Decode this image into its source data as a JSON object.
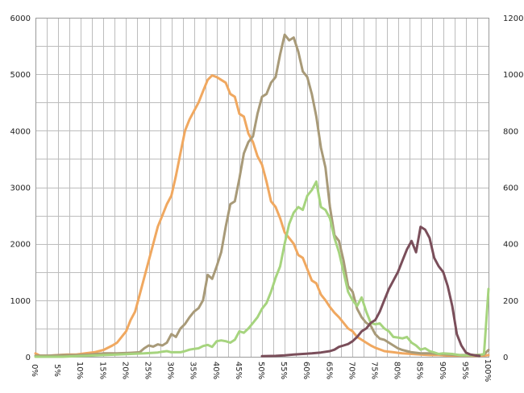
{
  "chart_data": {
    "type": "line",
    "title": "",
    "xlabel": "",
    "ylabel": "",
    "x_tick_labels": [
      "0%",
      "5%",
      "10%",
      "15%",
      "20%",
      "25%",
      "30%",
      "35%",
      "40%",
      "45%",
      "50%",
      "55%",
      "60%",
      "65%",
      "70%",
      "75%",
      "80%",
      "85%",
      "90%",
      "95%",
      "100%"
    ],
    "y_left_ticks": [
      "0",
      "1000",
      "2000",
      "3000",
      "4000",
      "5000",
      "6000"
    ],
    "y_right_ticks": [
      "0",
      "200",
      "400",
      "600",
      "800",
      "1000",
      "1200"
    ],
    "ylim_left": [
      0,
      6000
    ],
    "ylim_right": [
      0,
      1200
    ],
    "xlim": [
      0,
      100
    ],
    "grid": true,
    "legend": "none",
    "series": [
      {
        "color": "#f0a860",
        "axis": "left",
        "points": [
          [
            0,
            60
          ],
          [
            1,
            20
          ],
          [
            3,
            20
          ],
          [
            5,
            30
          ],
          [
            7,
            40
          ],
          [
            9,
            40
          ],
          [
            11,
            60
          ],
          [
            13,
            80
          ],
          [
            15,
            120
          ],
          [
            17,
            200
          ],
          [
            18,
            250
          ],
          [
            20,
            450
          ],
          [
            21,
            650
          ],
          [
            22,
            800
          ],
          [
            23,
            1100
          ],
          [
            24,
            1400
          ],
          [
            25,
            1700
          ],
          [
            26,
            2000
          ],
          [
            27,
            2300
          ],
          [
            28,
            2500
          ],
          [
            29,
            2700
          ],
          [
            30,
            2850
          ],
          [
            31,
            3200
          ],
          [
            32,
            3600
          ],
          [
            33,
            4000
          ],
          [
            34,
            4200
          ],
          [
            35,
            4350
          ],
          [
            36,
            4500
          ],
          [
            37,
            4700
          ],
          [
            38,
            4900
          ],
          [
            39,
            4980
          ],
          [
            40,
            4950
          ],
          [
            41,
            4900
          ],
          [
            42,
            4850
          ],
          [
            43,
            4650
          ],
          [
            44,
            4600
          ],
          [
            45,
            4300
          ],
          [
            46,
            4250
          ],
          [
            47,
            3950
          ],
          [
            48,
            3800
          ],
          [
            49,
            3550
          ],
          [
            50,
            3400
          ],
          [
            51,
            3100
          ],
          [
            52,
            2750
          ],
          [
            53,
            2650
          ],
          [
            54,
            2450
          ],
          [
            55,
            2200
          ],
          [
            56,
            2100
          ],
          [
            57,
            2000
          ],
          [
            58,
            1800
          ],
          [
            59,
            1750
          ],
          [
            60,
            1550
          ],
          [
            61,
            1350
          ],
          [
            62,
            1300
          ],
          [
            63,
            1100
          ],
          [
            64,
            1000
          ],
          [
            65,
            880
          ],
          [
            66,
            780
          ],
          [
            67,
            700
          ],
          [
            68,
            600
          ],
          [
            69,
            500
          ],
          [
            70,
            450
          ],
          [
            71,
            350
          ],
          [
            72,
            300
          ],
          [
            73,
            250
          ],
          [
            74,
            200
          ],
          [
            75,
            160
          ],
          [
            76,
            130
          ],
          [
            77,
            100
          ],
          [
            78,
            90
          ],
          [
            79,
            80
          ],
          [
            80,
            70
          ],
          [
            81,
            60
          ],
          [
            83,
            50
          ],
          [
            85,
            40
          ],
          [
            87,
            30
          ],
          [
            89,
            30
          ],
          [
            91,
            20
          ],
          [
            93,
            20
          ],
          [
            95,
            20
          ],
          [
            97,
            15
          ],
          [
            99,
            20
          ],
          [
            100,
            30
          ]
        ]
      },
      {
        "color": "#a89a78",
        "axis": "left",
        "points": [
          [
            0,
            20
          ],
          [
            3,
            20
          ],
          [
            6,
            30
          ],
          [
            9,
            30
          ],
          [
            12,
            40
          ],
          [
            15,
            60
          ],
          [
            18,
            60
          ],
          [
            21,
            70
          ],
          [
            23,
            80
          ],
          [
            24,
            150
          ],
          [
            25,
            200
          ],
          [
            26,
            180
          ],
          [
            27,
            220
          ],
          [
            28,
            200
          ],
          [
            29,
            250
          ],
          [
            30,
            400
          ],
          [
            31,
            350
          ],
          [
            32,
            500
          ],
          [
            33,
            580
          ],
          [
            34,
            700
          ],
          [
            35,
            800
          ],
          [
            36,
            860
          ],
          [
            37,
            1000
          ],
          [
            38,
            1450
          ],
          [
            39,
            1380
          ],
          [
            40,
            1600
          ],
          [
            41,
            1850
          ],
          [
            42,
            2300
          ],
          [
            43,
            2700
          ],
          [
            44,
            2750
          ],
          [
            45,
            3150
          ],
          [
            46,
            3600
          ],
          [
            47,
            3800
          ],
          [
            48,
            3900
          ],
          [
            49,
            4300
          ],
          [
            50,
            4600
          ],
          [
            51,
            4650
          ],
          [
            52,
            4850
          ],
          [
            53,
            4950
          ],
          [
            54,
            5350
          ],
          [
            55,
            5700
          ],
          [
            56,
            5600
          ],
          [
            57,
            5650
          ],
          [
            58,
            5400
          ],
          [
            59,
            5050
          ],
          [
            60,
            4950
          ],
          [
            61,
            4650
          ],
          [
            62,
            4250
          ],
          [
            63,
            3700
          ],
          [
            64,
            3350
          ],
          [
            65,
            2650
          ],
          [
            66,
            2150
          ],
          [
            67,
            2050
          ],
          [
            68,
            1700
          ],
          [
            69,
            1250
          ],
          [
            70,
            1150
          ],
          [
            71,
            850
          ],
          [
            72,
            700
          ],
          [
            73,
            600
          ],
          [
            74,
            550
          ],
          [
            75,
            400
          ],
          [
            76,
            320
          ],
          [
            77,
            300
          ],
          [
            78,
            250
          ],
          [
            79,
            200
          ],
          [
            80,
            150
          ],
          [
            81,
            120
          ],
          [
            82,
            100
          ],
          [
            83,
            80
          ],
          [
            85,
            60
          ],
          [
            87,
            60
          ],
          [
            89,
            50
          ],
          [
            91,
            40
          ],
          [
            93,
            30
          ],
          [
            95,
            30
          ],
          [
            97,
            30
          ],
          [
            99,
            40
          ],
          [
            100,
            120
          ]
        ]
      },
      {
        "color": "#a6d47e",
        "axis": "right",
        "points": [
          [
            0,
            0
          ],
          [
            3,
            0
          ],
          [
            6,
            0
          ],
          [
            9,
            2
          ],
          [
            12,
            4
          ],
          [
            15,
            6
          ],
          [
            18,
            8
          ],
          [
            21,
            10
          ],
          [
            24,
            12
          ],
          [
            27,
            15
          ],
          [
            28,
            18
          ],
          [
            29,
            20
          ],
          [
            30,
            16
          ],
          [
            32,
            16
          ],
          [
            33,
            20
          ],
          [
            34,
            25
          ],
          [
            35,
            28
          ],
          [
            36,
            30
          ],
          [
            37,
            38
          ],
          [
            38,
            42
          ],
          [
            39,
            35
          ],
          [
            40,
            55
          ],
          [
            41,
            58
          ],
          [
            42,
            55
          ],
          [
            43,
            50
          ],
          [
            44,
            60
          ],
          [
            45,
            90
          ],
          [
            46,
            85
          ],
          [
            47,
            100
          ],
          [
            48,
            120
          ],
          [
            49,
            140
          ],
          [
            50,
            170
          ],
          [
            51,
            190
          ],
          [
            52,
            230
          ],
          [
            53,
            280
          ],
          [
            54,
            320
          ],
          [
            55,
            400
          ],
          [
            56,
            470
          ],
          [
            57,
            510
          ],
          [
            58,
            530
          ],
          [
            59,
            520
          ],
          [
            60,
            570
          ],
          [
            61,
            590
          ],
          [
            62,
            620
          ],
          [
            63,
            530
          ],
          [
            64,
            520
          ],
          [
            65,
            490
          ],
          [
            66,
            420
          ],
          [
            67,
            370
          ],
          [
            68,
            300
          ],
          [
            69,
            230
          ],
          [
            70,
            200
          ],
          [
            71,
            180
          ],
          [
            72,
            210
          ],
          [
            73,
            160
          ],
          [
            74,
            120
          ],
          [
            75,
            115
          ],
          [
            76,
            118
          ],
          [
            77,
            100
          ],
          [
            78,
            90
          ],
          [
            79,
            70
          ],
          [
            80,
            68
          ],
          [
            81,
            65
          ],
          [
            82,
            70
          ],
          [
            83,
            50
          ],
          [
            84,
            40
          ],
          [
            85,
            25
          ],
          [
            86,
            30
          ],
          [
            87,
            20
          ],
          [
            88,
            15
          ],
          [
            89,
            10
          ],
          [
            90,
            12
          ],
          [
            92,
            10
          ],
          [
            94,
            5
          ],
          [
            96,
            5
          ],
          [
            98,
            6
          ],
          [
            99,
            10
          ],
          [
            100,
            240
          ]
        ]
      },
      {
        "color": "#7a4e5a",
        "axis": "right",
        "points": [
          [
            50,
            2
          ],
          [
            53,
            3
          ],
          [
            55,
            5
          ],
          [
            57,
            8
          ],
          [
            59,
            10
          ],
          [
            61,
            12
          ],
          [
            63,
            15
          ],
          [
            65,
            20
          ],
          [
            66,
            25
          ],
          [
            67,
            35
          ],
          [
            68,
            40
          ],
          [
            69,
            45
          ],
          [
            70,
            55
          ],
          [
            71,
            70
          ],
          [
            72,
            90
          ],
          [
            73,
            100
          ],
          [
            74,
            120
          ],
          [
            75,
            130
          ],
          [
            76,
            160
          ],
          [
            77,
            200
          ],
          [
            78,
            240
          ],
          [
            79,
            270
          ],
          [
            80,
            300
          ],
          [
            81,
            340
          ],
          [
            82,
            380
          ],
          [
            83,
            410
          ],
          [
            84,
            370
          ],
          [
            85,
            460
          ],
          [
            86,
            450
          ],
          [
            87,
            420
          ],
          [
            88,
            350
          ],
          [
            89,
            320
          ],
          [
            90,
            300
          ],
          [
            91,
            250
          ],
          [
            92,
            180
          ],
          [
            93,
            80
          ],
          [
            94,
            40
          ],
          [
            95,
            15
          ],
          [
            96,
            8
          ],
          [
            97,
            5
          ],
          [
            98,
            3
          ]
        ]
      }
    ]
  }
}
